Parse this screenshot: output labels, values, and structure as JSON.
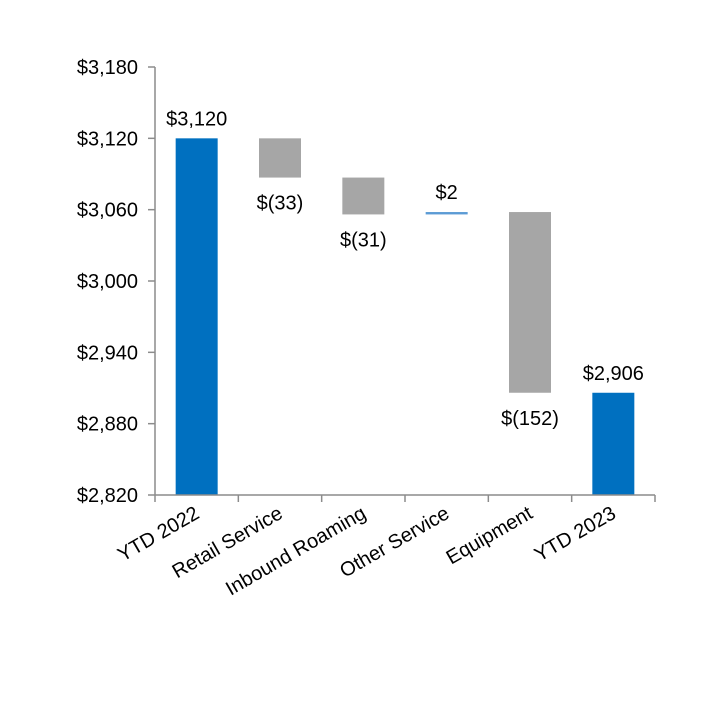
{
  "chart_data": {
    "type": "bar",
    "subtype": "waterfall",
    "title": "",
    "xlabel": "",
    "ylabel": "",
    "ylim": [
      2820,
      3180
    ],
    "yticks": [
      2820,
      2880,
      2940,
      3000,
      3060,
      3120,
      3180
    ],
    "ytick_labels": [
      "$2,820",
      "$2,880",
      "$2,940",
      "$3,000",
      "$3,060",
      "$3,120",
      "$3,180"
    ],
    "grid": false,
    "legend": "none",
    "categories": [
      "YTD 2022",
      "Retail Service",
      "Inbound Roaming",
      "Other Service",
      "Equipment",
      "YTD 2023"
    ],
    "values": [
      3120,
      -33,
      -31,
      2,
      -152,
      2906
    ],
    "kinds": [
      "total",
      "delta",
      "delta",
      "delta",
      "delta",
      "total"
    ],
    "data_labels": [
      "$3,120",
      "$(33)",
      "$(31)",
      "$2",
      "$(152)",
      "$2,906"
    ],
    "colors": {
      "total": "#0070c0",
      "decrease": "#a6a6a6",
      "increase": "#5b9bd5",
      "axis": "#8c8c8c"
    }
  }
}
